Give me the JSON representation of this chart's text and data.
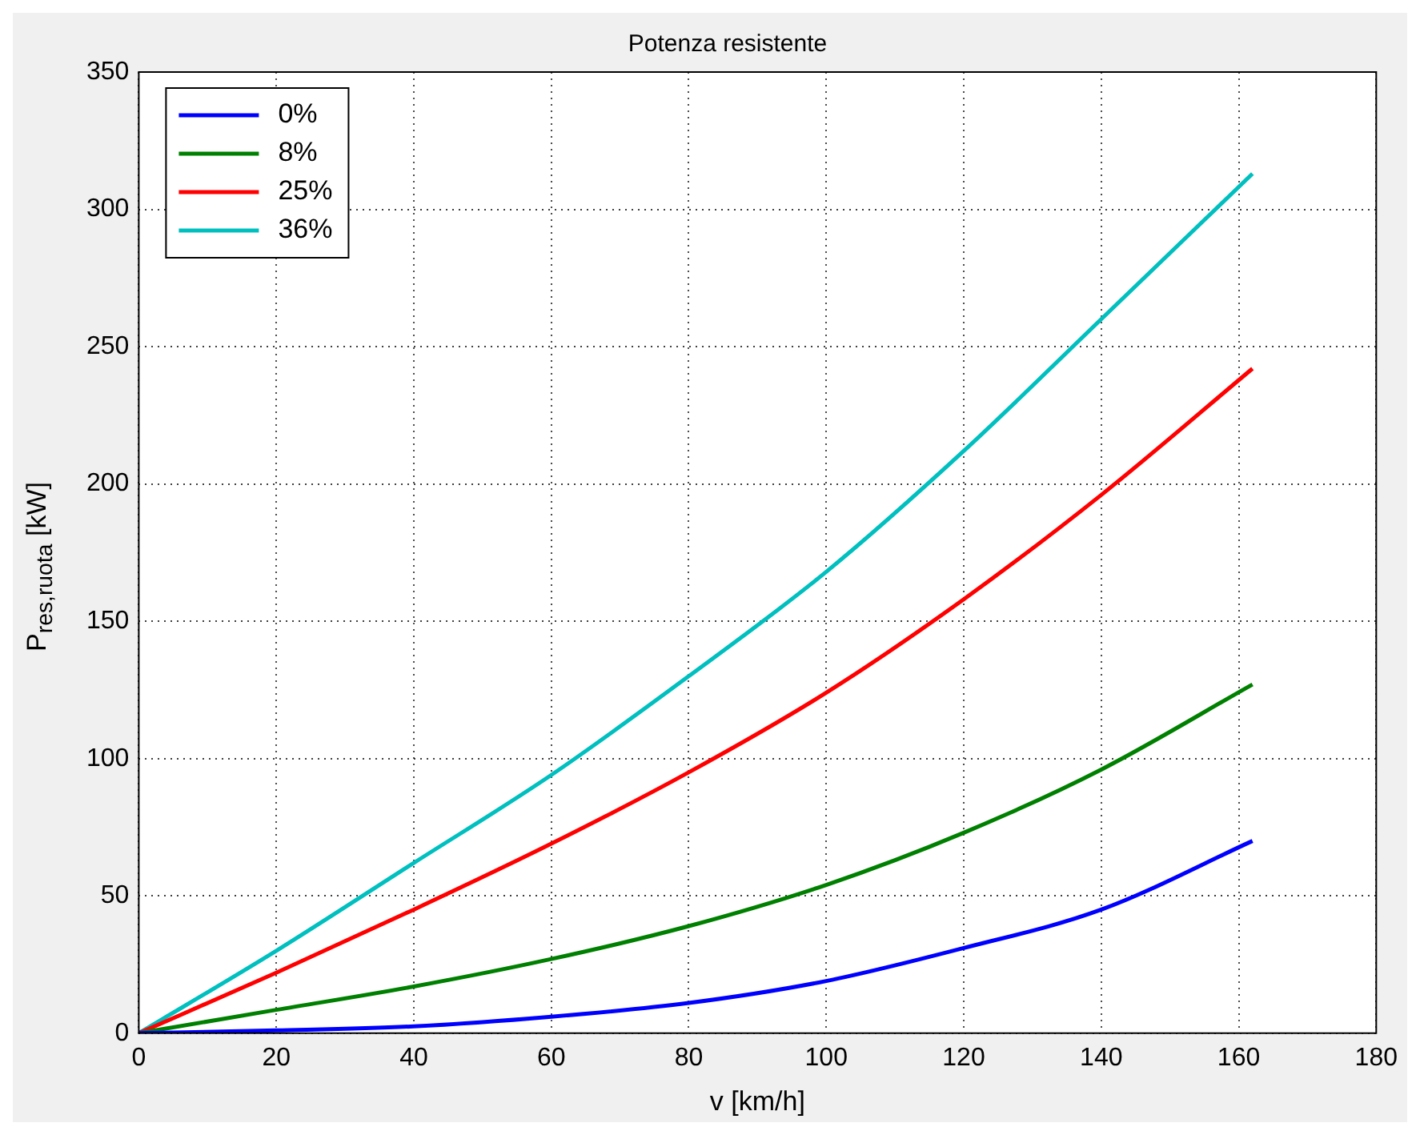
{
  "chart_data": {
    "type": "line",
    "title": "Potenza resistente",
    "xlabel": "v [km/h]",
    "ylabel": "P$_{res,ruota}$ [kW]",
    "x": [
      0,
      20,
      40,
      60,
      80,
      100,
      120,
      140,
      162
    ],
    "series": [
      {
        "name": "0%",
        "color": "#0000ff",
        "values": [
          0,
          1,
          2.5,
          6,
          11,
          19,
          31,
          45,
          70
        ]
      },
      {
        "name": "8%",
        "color": "#008000",
        "values": [
          0,
          8.5,
          17,
          27,
          39,
          54,
          73,
          96,
          127
        ]
      },
      {
        "name": "25%",
        "color": "#ff0000",
        "values": [
          0,
          22,
          45,
          69,
          95,
          124,
          158,
          196,
          242
        ]
      },
      {
        "name": "36%",
        "color": "#00bfbf",
        "values": [
          0,
          30,
          62,
          94,
          130,
          168,
          212,
          260,
          313
        ]
      }
    ],
    "xlim": [
      0,
      180
    ],
    "xticks": [
      0,
      20,
      40,
      60,
      80,
      100,
      120,
      140,
      160,
      180
    ],
    "ylim": [
      0,
      350
    ],
    "yticks": [
      0,
      50,
      100,
      150,
      200,
      250,
      300,
      350
    ],
    "grid": true,
    "legend": "top left",
    "marker": "none",
    "line_style": "solid"
  }
}
